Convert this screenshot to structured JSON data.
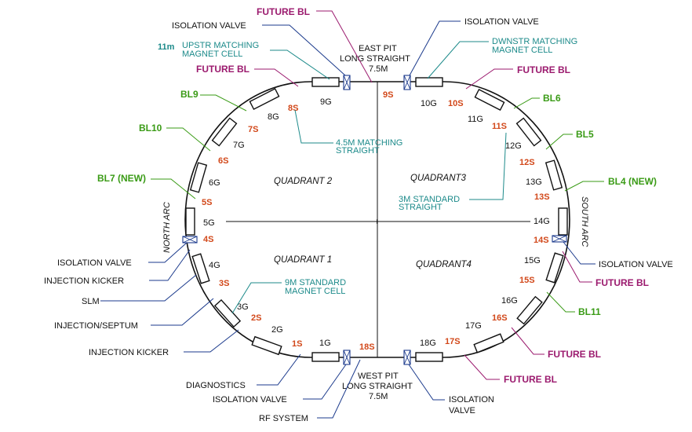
{
  "pits": {
    "east": {
      "line1": "EAST PIT",
      "line2": "LONG STRAIGHT",
      "line3": "7.5M"
    },
    "west": {
      "line1": "WEST PIT",
      "line2": "LONG STRAIGHT",
      "line3": "7.5M"
    }
  },
  "quadrants": [
    "QUADRANT 2",
    "QUADRANT3",
    "QUADRANT 1",
    "QUADRANT4"
  ],
  "arcs": {
    "north": "NORTH ARC",
    "south": "SOUTH ARC"
  },
  "center_mark": "+",
  "magnets": [
    "1G",
    "2G",
    "3G",
    "4G",
    "5G",
    "6G",
    "7G",
    "8G",
    "9G",
    "10G",
    "11G",
    "12G",
    "13G",
    "14G",
    "15G",
    "16G",
    "17G",
    "18G"
  ],
  "straights": [
    "1S",
    "2S",
    "3S",
    "4S",
    "5S",
    "6S",
    "7S",
    "8S",
    "9S",
    "10S",
    "11S",
    "12S",
    "13S",
    "14S",
    "15S",
    "16S",
    "17S",
    "18S"
  ],
  "labels": {
    "isolation_valve": "ISOLATION VALVE",
    "isolation": "ISOLATION",
    "valve": "VALVE",
    "injection_kicker": "INJECTION KICKER",
    "slm": "SLM",
    "injection_septum": "INJECTION/SEPTUM",
    "diagnostics": "DIAGNOSTICS",
    "rf_system": "RF SYSTEM",
    "future_bl": "FUTURE BL",
    "bl9": "BL9",
    "bl10": "BL10",
    "bl7": "BL7 (NEW)",
    "bl6": "BL6",
    "bl5": "BL5",
    "bl4": "BL4 (NEW)",
    "bl11": "BL11",
    "upstr_1": "UPSTR MATCHING",
    "upstr_2": "MAGNET CELL",
    "upstr_len": "11m",
    "dwnstr_1": "DWNSTR MATCHING",
    "dwnstr_2": "MAGNET CELL",
    "m45_1": "4.5M MATCHING",
    "m45_2": "STRAIGHT",
    "m3_1": "3M STANDARD",
    "m3_2": "STRAIGHT",
    "m9_1": "9M STANDARD",
    "m9_2": "MAGNET CELL"
  },
  "colors": {
    "future": "#9b1a6e",
    "beamline": "#3a9b16",
    "straight": "#d2481a",
    "cell": "#1c8a8a",
    "valve": "#1b3a8c"
  }
}
